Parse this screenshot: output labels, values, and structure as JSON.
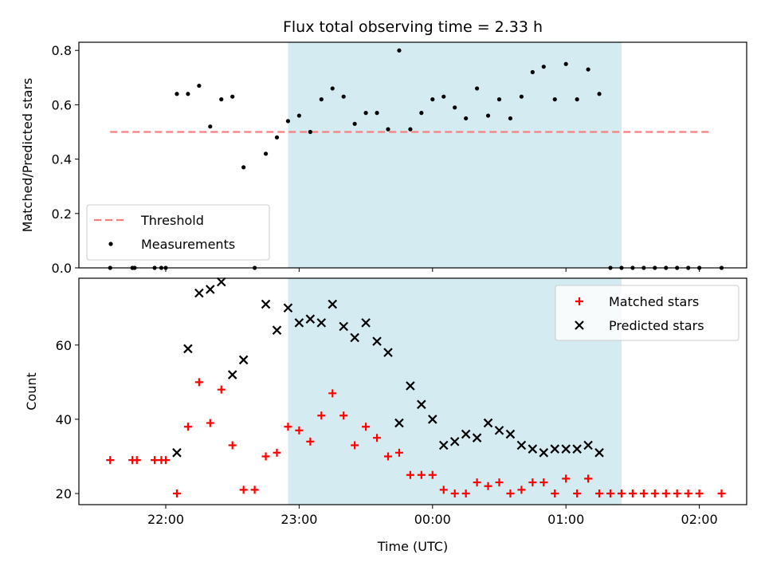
{
  "chart_data": [
    {
      "type": "scatter",
      "title": "Flux total observing time = 2.33 h",
      "xlabel": "",
      "ylabel": "Matched/Predicted stars",
      "ylim": [
        0,
        0.83
      ],
      "yticks": [
        "0.0",
        "0.2",
        "0.4",
        "0.6",
        "0.8"
      ],
      "yticks_values": [
        0,
        0.2,
        0.4,
        0.6,
        0.8
      ],
      "grid": false,
      "legend_position": "lower-left",
      "shaded_interval": [
        "22:55",
        "01:25"
      ],
      "threshold": {
        "name": "Threshold",
        "value": 0.5,
        "x_start": "21:35",
        "x_end": "02:05",
        "color": "#f47f7f"
      },
      "series": [
        {
          "name": "Measurements",
          "color": "#000000",
          "points": [
            [
              "21:35",
              0.0
            ],
            [
              "21:45",
              0.0
            ],
            [
              "21:46",
              0.0
            ],
            [
              "21:55",
              0.0
            ],
            [
              "21:58",
              0.0
            ],
            [
              "22:00",
              0.0
            ],
            [
              "22:05",
              0.64
            ],
            [
              "22:10",
              0.64
            ],
            [
              "22:15",
              0.67
            ],
            [
              "22:20",
              0.52
            ],
            [
              "22:25",
              0.62
            ],
            [
              "22:30",
              0.63
            ],
            [
              "22:35",
              0.37
            ],
            [
              "22:40",
              0.0
            ],
            [
              "22:45",
              0.42
            ],
            [
              "22:50",
              0.48
            ],
            [
              "22:55",
              0.54
            ],
            [
              "23:00",
              0.56
            ],
            [
              "23:05",
              0.5
            ],
            [
              "23:10",
              0.62
            ],
            [
              "23:15",
              0.66
            ],
            [
              "23:20",
              0.63
            ],
            [
              "23:25",
              0.53
            ],
            [
              "23:30",
              0.57
            ],
            [
              "23:35",
              0.57
            ],
            [
              "23:40",
              0.51
            ],
            [
              "23:45",
              0.8
            ],
            [
              "23:50",
              0.51
            ],
            [
              "23:55",
              0.57
            ],
            [
              "00:00",
              0.62
            ],
            [
              "00:05",
              0.63
            ],
            [
              "00:10",
              0.59
            ],
            [
              "00:15",
              0.55
            ],
            [
              "00:20",
              0.66
            ],
            [
              "00:25",
              0.56
            ],
            [
              "00:30",
              0.62
            ],
            [
              "00:35",
              0.55
            ],
            [
              "00:40",
              0.63
            ],
            [
              "00:45",
              0.72
            ],
            [
              "00:50",
              0.74
            ],
            [
              "00:55",
              0.62
            ],
            [
              "01:00",
              0.75
            ],
            [
              "01:05",
              0.62
            ],
            [
              "01:10",
              0.73
            ],
            [
              "01:15",
              0.64
            ],
            [
              "01:20",
              0.0
            ],
            [
              "01:25",
              0.0
            ],
            [
              "01:30",
              0.0
            ],
            [
              "01:35",
              0.0
            ],
            [
              "01:40",
              0.0
            ],
            [
              "01:45",
              0.0
            ],
            [
              "01:50",
              0.0
            ],
            [
              "01:55",
              0.0
            ],
            [
              "02:00",
              0.0
            ],
            [
              "02:10",
              0.0
            ]
          ]
        }
      ]
    },
    {
      "type": "scatter",
      "title": "",
      "xlabel": "Time (UTC)",
      "ylabel": "Count",
      "ylim": [
        17,
        78
      ],
      "yticks": [
        "20",
        "40",
        "60"
      ],
      "yticks_values": [
        20,
        40,
        60
      ],
      "xticks": [
        "22:00",
        "23:00",
        "00:00",
        "01:00",
        "02:00"
      ],
      "grid": false,
      "legend_position": "top-right",
      "shaded_interval": [
        "22:55",
        "01:25"
      ],
      "series": [
        {
          "name": "Matched stars",
          "marker": "plus",
          "color": "#ff0000",
          "points": [
            [
              "21:35",
              29
            ],
            [
              "21:45",
              29
            ],
            [
              "21:47",
              29
            ],
            [
              "21:55",
              29
            ],
            [
              "21:58",
              29
            ],
            [
              "22:00",
              29
            ],
            [
              "22:05",
              20
            ],
            [
              "22:10",
              38
            ],
            [
              "22:15",
              50
            ],
            [
              "22:20",
              39
            ],
            [
              "22:25",
              48
            ],
            [
              "22:30",
              33
            ],
            [
              "22:35",
              21
            ],
            [
              "22:40",
              21
            ],
            [
              "22:45",
              30
            ],
            [
              "22:50",
              31
            ],
            [
              "22:55",
              38
            ],
            [
              "23:00",
              37
            ],
            [
              "23:05",
              34
            ],
            [
              "23:10",
              41
            ],
            [
              "23:15",
              47
            ],
            [
              "23:20",
              41
            ],
            [
              "23:25",
              33
            ],
            [
              "23:30",
              38
            ],
            [
              "23:35",
              35
            ],
            [
              "23:40",
              30
            ],
            [
              "23:45",
              31
            ],
            [
              "23:50",
              25
            ],
            [
              "23:55",
              25
            ],
            [
              "00:00",
              25
            ],
            [
              "00:05",
              21
            ],
            [
              "00:10",
              20
            ],
            [
              "00:15",
              20
            ],
            [
              "00:20",
              23
            ],
            [
              "00:25",
              22
            ],
            [
              "00:30",
              23
            ],
            [
              "00:35",
              20
            ],
            [
              "00:40",
              21
            ],
            [
              "00:45",
              23
            ],
            [
              "00:50",
              23
            ],
            [
              "00:55",
              20
            ],
            [
              "01:00",
              24
            ],
            [
              "01:05",
              20
            ],
            [
              "01:10",
              24
            ],
            [
              "01:15",
              20
            ],
            [
              "01:20",
              20
            ],
            [
              "01:25",
              20
            ],
            [
              "01:30",
              20
            ],
            [
              "01:35",
              20
            ],
            [
              "01:40",
              20
            ],
            [
              "01:45",
              20
            ],
            [
              "01:50",
              20
            ],
            [
              "01:55",
              20
            ],
            [
              "02:00",
              20
            ],
            [
              "02:10",
              20
            ]
          ]
        },
        {
          "name": "Predicted stars",
          "marker": "x",
          "color": "#000000",
          "points": [
            [
              "22:05",
              31
            ],
            [
              "22:10",
              59
            ],
            [
              "22:15",
              74
            ],
            [
              "22:20",
              75
            ],
            [
              "22:25",
              77
            ],
            [
              "22:30",
              52
            ],
            [
              "22:35",
              56
            ],
            [
              "22:45",
              71
            ],
            [
              "22:50",
              64
            ],
            [
              "22:55",
              70
            ],
            [
              "23:00",
              66
            ],
            [
              "23:05",
              67
            ],
            [
              "23:10",
              66
            ],
            [
              "23:15",
              71
            ],
            [
              "23:20",
              65
            ],
            [
              "23:25",
              62
            ],
            [
              "23:30",
              66
            ],
            [
              "23:35",
              61
            ],
            [
              "23:40",
              58
            ],
            [
              "23:45",
              39
            ],
            [
              "23:50",
              49
            ],
            [
              "23:55",
              44
            ],
            [
              "00:00",
              40
            ],
            [
              "00:05",
              33
            ],
            [
              "00:10",
              34
            ],
            [
              "00:15",
              36
            ],
            [
              "00:20",
              35
            ],
            [
              "00:25",
              39
            ],
            [
              "00:30",
              37
            ],
            [
              "00:35",
              36
            ],
            [
              "00:40",
              33
            ],
            [
              "00:45",
              32
            ],
            [
              "00:50",
              31
            ],
            [
              "00:55",
              32
            ],
            [
              "01:00",
              32
            ],
            [
              "01:05",
              32
            ],
            [
              "01:10",
              33
            ],
            [
              "01:15",
              31
            ]
          ]
        }
      ]
    }
  ],
  "colors": {
    "shade": "#d4ebf1",
    "threshold": "#f47f7f",
    "matched": "#ff0000",
    "predicted": "#000000"
  }
}
